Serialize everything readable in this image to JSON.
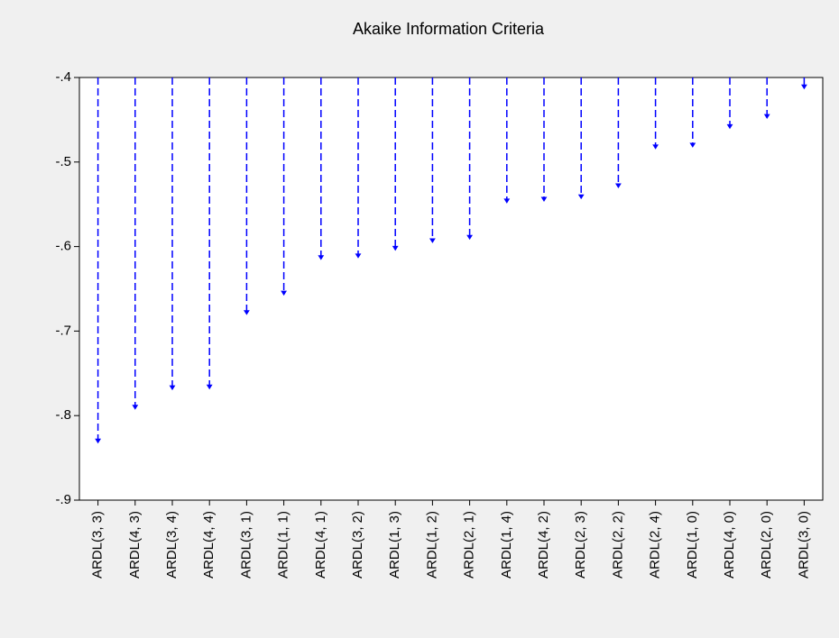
{
  "chart_data": {
    "type": "dropline",
    "title": "Akaike Information Criteria",
    "categories": [
      "ARDL(3, 3)",
      "ARDL(4, 3)",
      "ARDL(3, 4)",
      "ARDL(4, 4)",
      "ARDL(3, 1)",
      "ARDL(1, 1)",
      "ARDL(4, 1)",
      "ARDL(3, 2)",
      "ARDL(1, 3)",
      "ARDL(1, 2)",
      "ARDL(2, 1)",
      "ARDL(1, 4)",
      "ARDL(4, 2)",
      "ARDL(2, 3)",
      "ARDL(2, 2)",
      "ARDL(2, 4)",
      "ARDL(1, 0)",
      "ARDL(4, 0)",
      "ARDL(2, 0)",
      "ARDL(3, 0)"
    ],
    "values": [
      -0.831,
      -0.791,
      -0.768,
      -0.767,
      -0.679,
      -0.656,
      -0.614,
      -0.612,
      -0.603,
      -0.594,
      -0.59,
      -0.547,
      -0.545,
      -0.542,
      -0.529,
      -0.483,
      -0.481,
      -0.459,
      -0.447,
      -0.412
    ],
    "color": "#0000ff",
    "ylim": [
      -0.9,
      -0.4
    ],
    "yticks": [
      {
        "value": -0.9,
        "label": "-.9"
      },
      {
        "value": -0.8,
        "label": "-.8"
      },
      {
        "value": -0.7,
        "label": "-.7"
      },
      {
        "value": -0.6,
        "label": "-.6"
      },
      {
        "value": -0.5,
        "label": "-.5"
      },
      {
        "value": -0.4,
        "label": "-.4"
      }
    ],
    "grid": false
  }
}
